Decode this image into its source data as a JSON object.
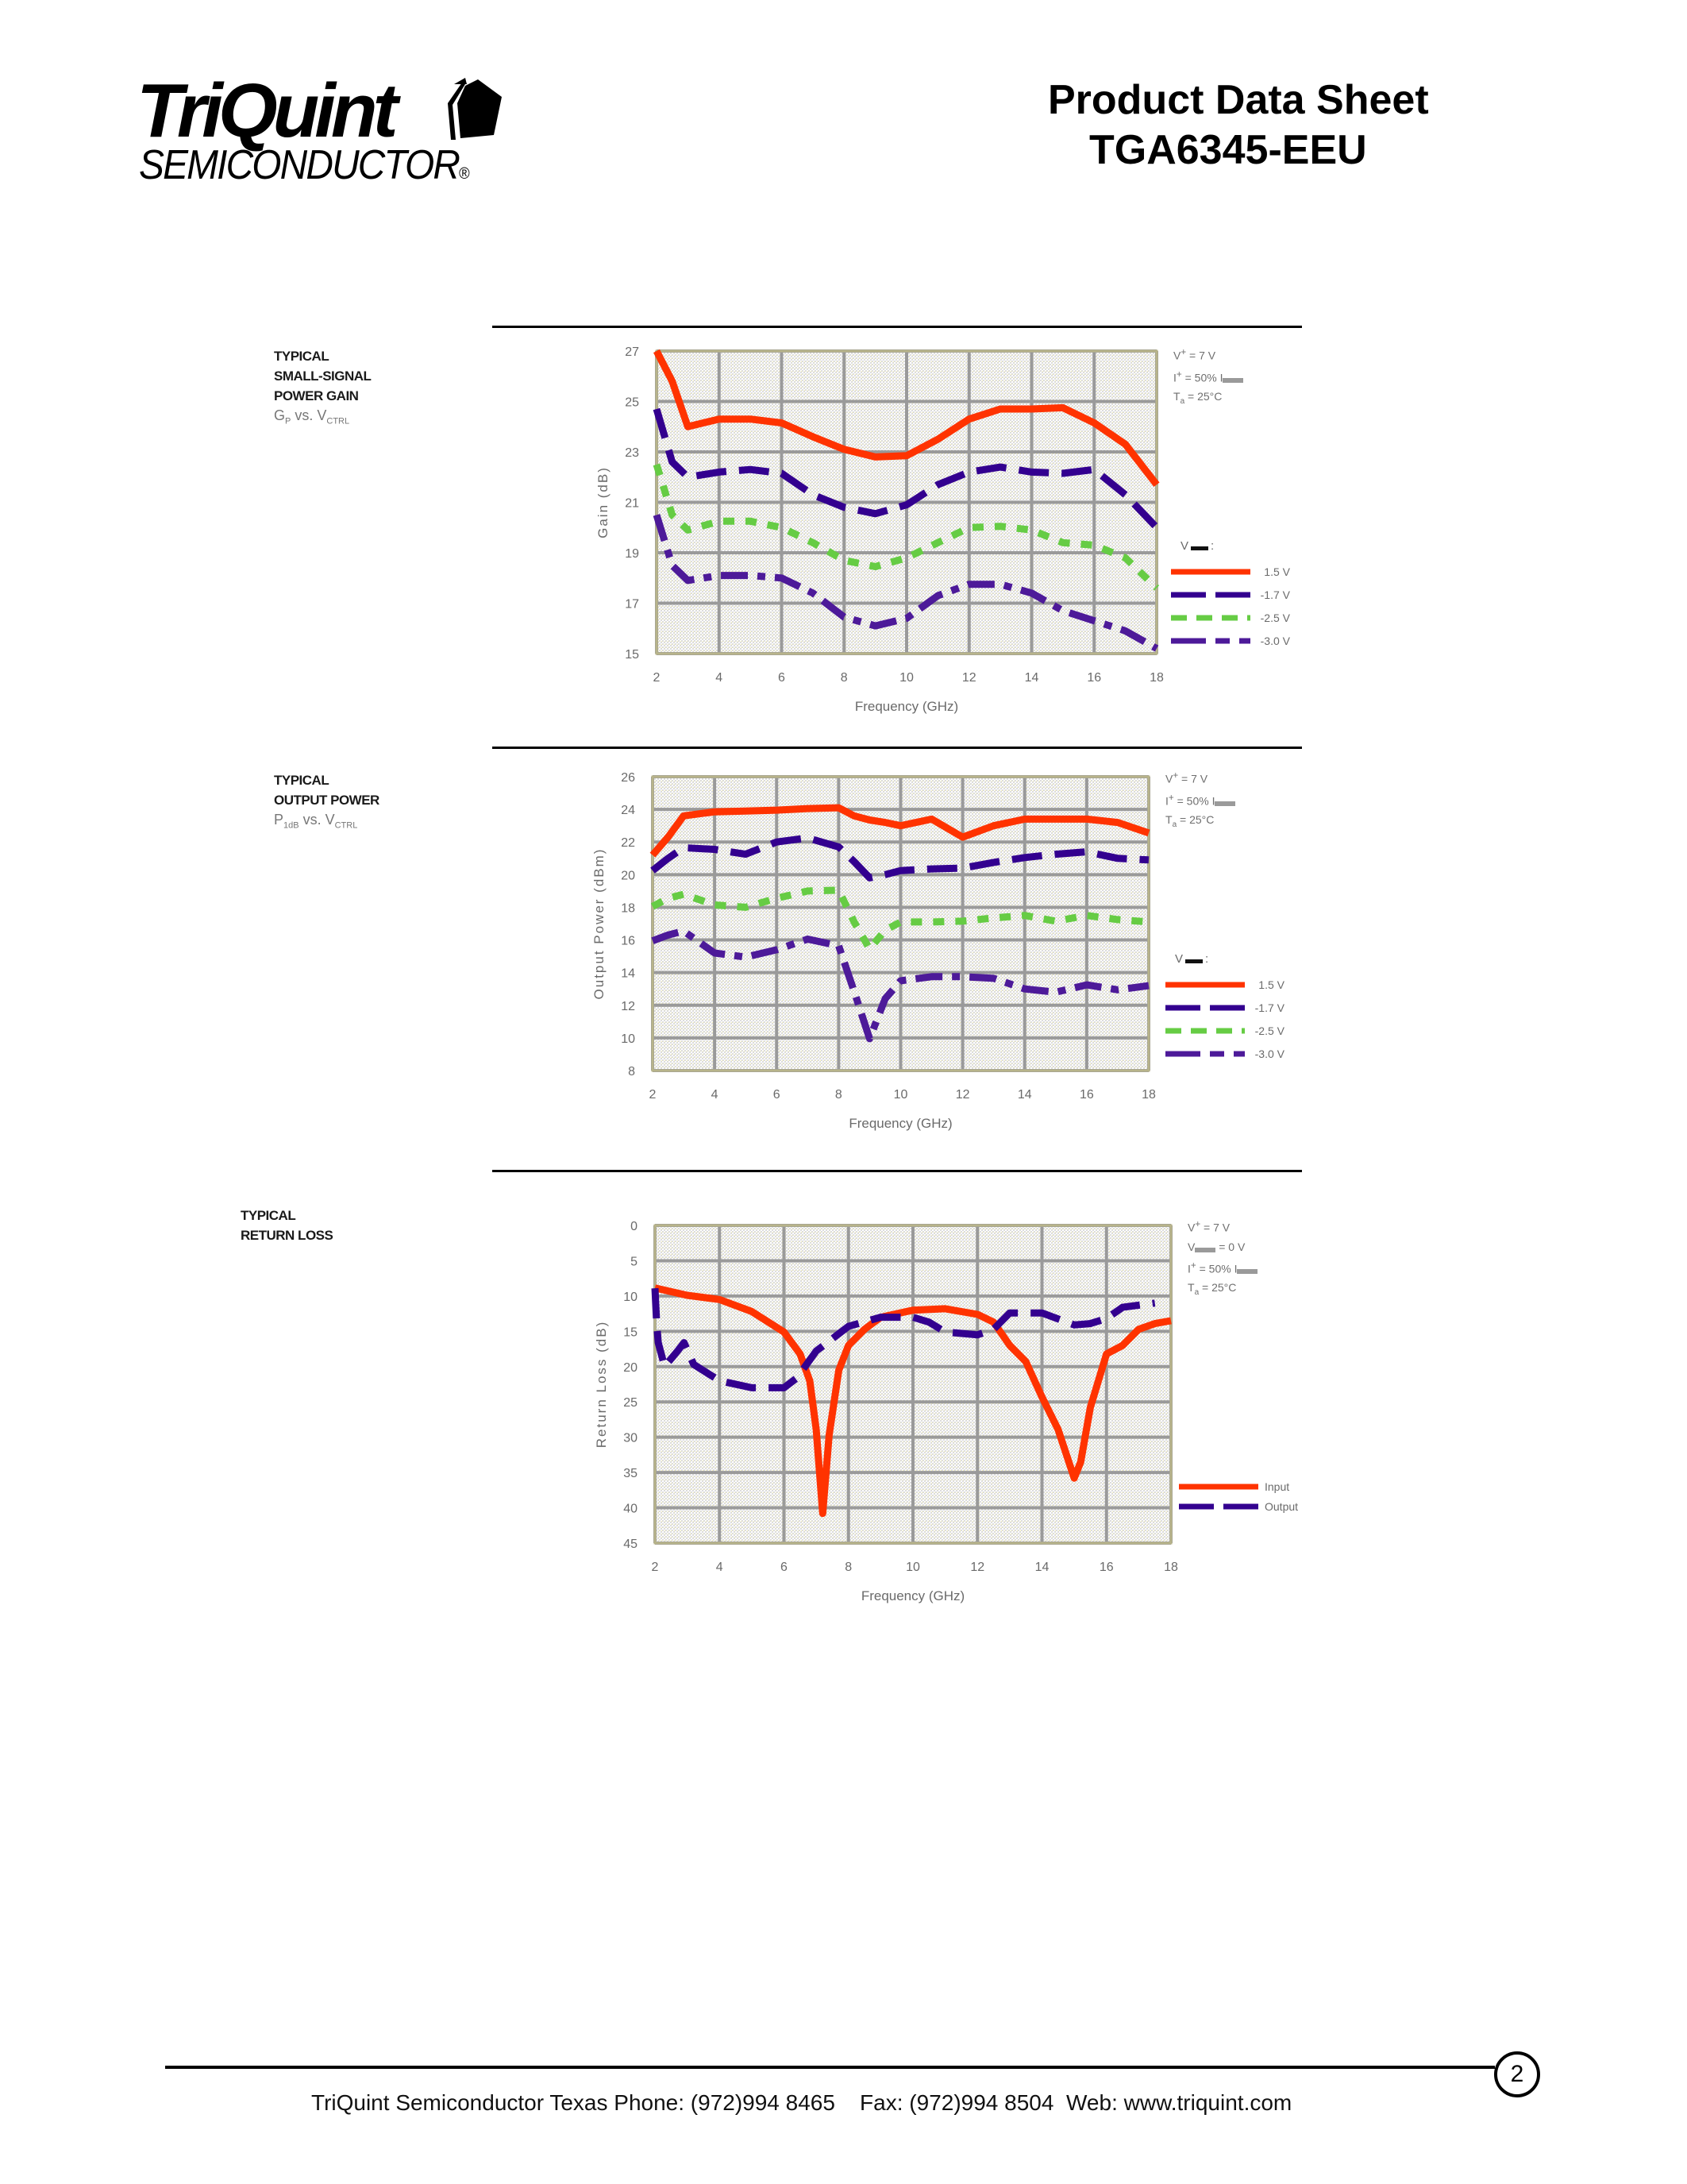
{
  "header": {
    "logo_main": "TriQuint",
    "logo_sub": "SEMICONDUCTOR",
    "logo_reg": "®",
    "title": "Product Data Sheet",
    "part_number": "TGA6345-EEU"
  },
  "colors": {
    "red": "#ff3300",
    "indigo": "#33008f",
    "green": "#66cc44",
    "purple": "#4d1a99",
    "grid": "#9a9a9a",
    "plot_bg": "#f3f1e6"
  },
  "sections": [
    {
      "label_lines": [
        "TYPICAL",
        "SMALL-SIGNAL",
        "POWER GAIN"
      ],
      "sub_label": {
        "main": "G",
        "main_sub": "P",
        "mid": " vs. V",
        "mid_sub": "CTRL"
      },
      "conditions": [
        {
          "pre": "V",
          "sup": "+",
          "post": " = 7 V"
        },
        {
          "pre": "I",
          "sup": "+",
          "post": " = 50% I",
          "blank": true
        },
        {
          "pre": "T",
          "sub": "a",
          "post": " = 25°C"
        }
      ],
      "legend_title": "V___:"
    },
    {
      "label_lines": [
        "TYPICAL",
        "OUTPUT POWER"
      ],
      "sub_label": {
        "main": "P",
        "main_sub": "1dB",
        "mid": " vs. V",
        "mid_sub": "CTRL"
      },
      "conditions": [
        {
          "pre": "V",
          "sup": "+",
          "post": " = 7 V"
        },
        {
          "pre": "I",
          "sup": "+",
          "post": " = 50% I",
          "blank": true
        },
        {
          "pre": "T",
          "sub": "a",
          "post": " = 25°C"
        }
      ],
      "legend_title": "V___:"
    },
    {
      "label_lines": [
        "TYPICAL",
        "RETURN LOSS"
      ],
      "conditions": [
        {
          "pre": "V",
          "sup": "+",
          "post": " = 7 V"
        },
        {
          "pre": "V",
          "blank_sub": true,
          "post": " = 0 V"
        },
        {
          "pre": "I",
          "sup": "+",
          "post": " = 50% I",
          "blank": true
        },
        {
          "pre": "T",
          "sub": "a",
          "post": " = 25°C"
        }
      ]
    }
  ],
  "chart_data": [
    {
      "type": "line",
      "title": "Typical Small-Signal Power Gain (Gp vs. Vctrl)",
      "xlabel": "Frequency (GHz)",
      "ylabel": "Gain (dB)",
      "xlim": [
        2,
        18
      ],
      "ylim": [
        15,
        27
      ],
      "xticks": [
        2,
        4,
        6,
        8,
        10,
        12,
        14,
        16,
        18
      ],
      "yticks": [
        27,
        25,
        23,
        21,
        19,
        17,
        15
      ],
      "grid": true,
      "legend_position": "right",
      "x": [
        2,
        2.5,
        3,
        4,
        5,
        6,
        7,
        8,
        9,
        10,
        11,
        12,
        13,
        14,
        15,
        16,
        17,
        18
      ],
      "series": [
        {
          "name": "1.5 V",
          "style": "solid",
          "color": "#ff3300",
          "values": [
            27.0,
            25.8,
            24.0,
            24.3,
            24.3,
            24.15,
            23.6,
            23.1,
            22.8,
            22.85,
            23.5,
            24.3,
            24.7,
            24.7,
            24.75,
            24.15,
            23.3,
            21.7
          ]
        },
        {
          "name": "-1.7 V",
          "style": "longdash",
          "color": "#33008f",
          "values": [
            24.7,
            22.6,
            22.0,
            22.2,
            22.3,
            22.15,
            21.3,
            20.8,
            20.55,
            20.9,
            21.7,
            22.2,
            22.4,
            22.2,
            22.15,
            22.3,
            21.3,
            20.0
          ]
        },
        {
          "name": "-2.5 V",
          "style": "shortdash",
          "color": "#66cc44",
          "values": [
            22.5,
            20.5,
            19.9,
            20.25,
            20.25,
            20.0,
            19.4,
            18.7,
            18.45,
            18.8,
            19.4,
            20.0,
            20.05,
            19.9,
            19.4,
            19.3,
            18.8,
            17.6
          ]
        },
        {
          "name": "-3.0 V",
          "style": "dashdot",
          "color": "#4d1a99",
          "values": [
            20.5,
            18.5,
            17.9,
            18.1,
            18.1,
            18.0,
            17.4,
            16.45,
            16.1,
            16.4,
            17.3,
            17.75,
            17.75,
            17.4,
            16.7,
            16.3,
            15.9,
            15.2
          ]
        }
      ],
      "annotations": [
        "V+ = 7 V",
        "I+ = 50% I___",
        "Ta = 25°C"
      ]
    },
    {
      "type": "line",
      "title": "Typical Output Power (P1dB vs. Vctrl)",
      "xlabel": "Frequency (GHz)",
      "ylabel": "Output Power (dBm)",
      "xlim": [
        2,
        18
      ],
      "ylim": [
        8,
        26
      ],
      "xticks": [
        2,
        4,
        6,
        8,
        10,
        12,
        14,
        16,
        18
      ],
      "yticks": [
        26,
        24,
        22,
        20,
        18,
        16,
        14,
        12,
        10,
        8
      ],
      "grid": true,
      "legend_position": "right",
      "x": [
        2,
        2.5,
        3,
        4,
        5,
        6,
        7,
        8,
        8.5,
        9,
        9.5,
        10,
        11,
        12,
        13,
        14,
        15,
        16,
        17,
        18
      ],
      "series": [
        {
          "name": "1.5 V",
          "style": "solid",
          "color": "#ff3300",
          "values": [
            21.2,
            22.3,
            23.6,
            23.85,
            23.9,
            23.95,
            24.05,
            24.1,
            23.6,
            23.35,
            23.2,
            23.0,
            23.4,
            22.3,
            23.0,
            23.4,
            23.4,
            23.4,
            23.2,
            22.55
          ]
        },
        {
          "name": "-1.7 V",
          "style": "longdash",
          "color": "#33008f",
          "values": [
            20.25,
            21.0,
            21.65,
            21.55,
            21.25,
            22.0,
            22.25,
            21.7,
            20.8,
            19.8,
            20.0,
            20.25,
            20.35,
            20.4,
            20.75,
            21.05,
            21.25,
            21.4,
            21.0,
            20.9
          ]
        },
        {
          "name": "-2.5 V",
          "style": "shortdash",
          "color": "#66cc44",
          "values": [
            18.05,
            18.55,
            18.8,
            18.15,
            18.0,
            18.55,
            19.0,
            19.05,
            17.1,
            15.45,
            16.6,
            17.1,
            17.1,
            17.15,
            17.35,
            17.5,
            17.15,
            17.5,
            17.25,
            17.1
          ]
        },
        {
          "name": "-3.0 V",
          "style": "dashdot",
          "color": "#4d1a99",
          "values": [
            15.95,
            16.3,
            16.55,
            15.2,
            14.95,
            15.4,
            16.05,
            15.65,
            12.85,
            9.95,
            12.4,
            13.5,
            13.75,
            13.75,
            13.65,
            13.0,
            12.8,
            13.25,
            12.95,
            13.2
          ]
        }
      ],
      "annotations": [
        "V+ = 7 V",
        "I+ = 50% I___",
        "Ta = 25°C"
      ]
    },
    {
      "type": "line",
      "title": "Typical Return Loss",
      "xlabel": "Frequency (GHz)",
      "ylabel": "Return Loss (dB)",
      "xlim": [
        2,
        18
      ],
      "ylim": [
        0,
        45
      ],
      "y_inverted": true,
      "xticks": [
        2,
        4,
        6,
        8,
        10,
        12,
        14,
        16,
        18
      ],
      "yticks": [
        0,
        5,
        10,
        15,
        20,
        25,
        30,
        35,
        40,
        45
      ],
      "grid": true,
      "legend_position": "right",
      "series": [
        {
          "name": "Input",
          "style": "solid",
          "color": "#ff3300",
          "x": [
            2,
            3,
            4,
            5,
            6,
            6.5,
            6.8,
            7,
            7.2,
            7.4,
            7.7,
            8,
            8.5,
            9,
            10,
            11,
            12,
            12.5,
            13,
            13.5,
            14,
            14.5,
            15,
            15.2,
            15.5,
            16,
            16.5,
            17,
            17.5,
            18
          ],
          "values": [
            8.85,
            9.9,
            10.5,
            12.2,
            15.1,
            18.2,
            22.0,
            28.9,
            40.8,
            29.7,
            20.5,
            17.0,
            14.7,
            13.0,
            12.0,
            11.8,
            12.6,
            13.7,
            17.0,
            19.3,
            24.3,
            28.9,
            35.8,
            33.5,
            25.8,
            18.2,
            17.0,
            14.7,
            13.9,
            13.5
          ]
        },
        {
          "name": "Output",
          "style": "longdash",
          "color": "#33008f",
          "x": [
            2,
            2.05,
            2.1,
            2.3,
            2.7,
            2.9,
            3.2,
            4,
            5,
            6,
            6.4,
            7,
            8,
            9,
            10,
            10.5,
            11,
            12,
            12.5,
            13,
            14,
            15,
            15.5,
            16,
            16.5,
            17.5
          ],
          "values": [
            8.9,
            13.5,
            16.6,
            20.0,
            17.8,
            16.6,
            19.7,
            22.0,
            23.0,
            23.0,
            21.6,
            17.8,
            14.3,
            13.0,
            13.0,
            13.7,
            15.1,
            15.5,
            14.7,
            12.4,
            12.4,
            14.1,
            13.9,
            13.2,
            11.6,
            11.0
          ]
        }
      ],
      "annotations": [
        "V+ = 7 V",
        "V___ = 0 V",
        "I+ = 50% I___",
        "Ta = 25°C"
      ]
    }
  ],
  "footer": {
    "text": "TriQuint Semiconductor Texas Phone: (972)994 8465    Fax: (972)994 8504  Web: www.triquint.com",
    "page_number": "2"
  }
}
